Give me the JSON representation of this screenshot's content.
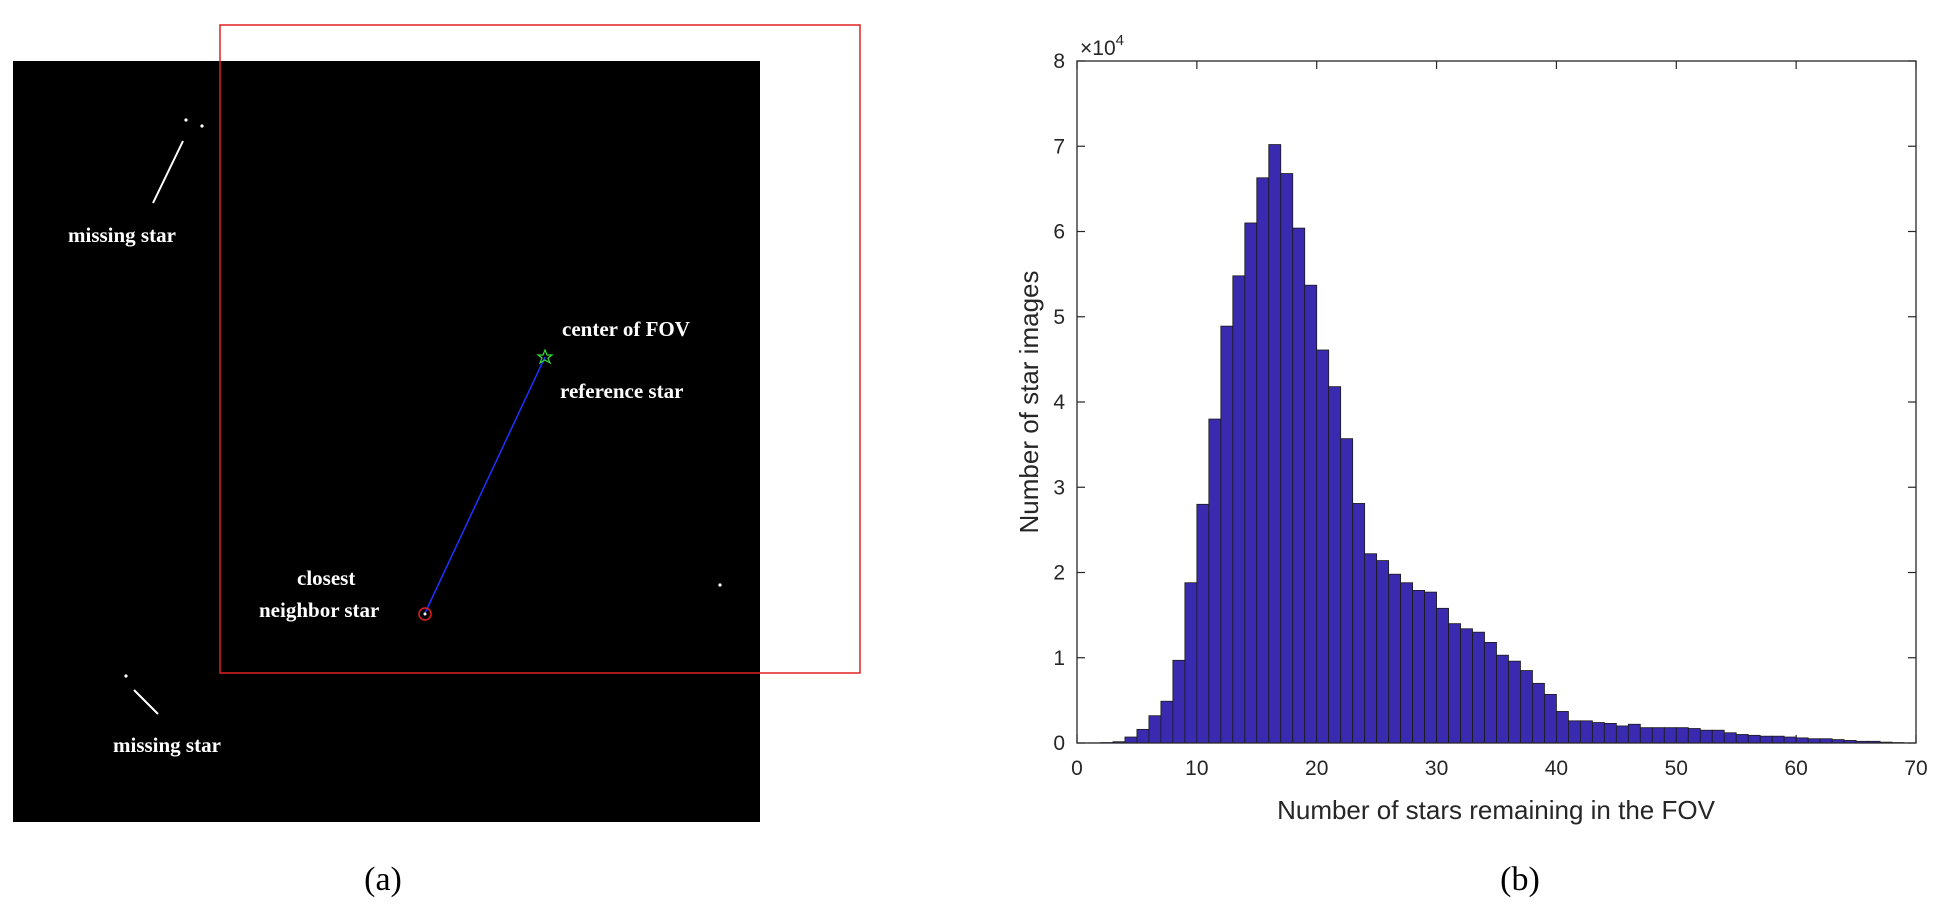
{
  "panel_a": {
    "caption": "(a)",
    "labels": {
      "missing_star_top": "missing star",
      "missing_star_bottom": "missing star",
      "center_of_fov": "center of FOV",
      "reference_star": "reference star",
      "closest_line1": "closest",
      "closest_line2": "neighbor star"
    },
    "colors": {
      "background": "#000000",
      "fov_box": "#e02020",
      "link_line": "#2030ff",
      "center_marker": "#33dd33",
      "neighbor_marker": "#e02020"
    }
  },
  "panel_b": {
    "caption": "(b)"
  },
  "chart_data": {
    "type": "bar",
    "xlabel": "Number of stars remaining in the FOV",
    "ylabel": "Number of star images",
    "y_exponent_base": "×10",
    "y_exponent_power": "4",
    "xlim": [
      0,
      70
    ],
    "ylim": [
      0,
      8
    ],
    "xticks": [
      0,
      10,
      20,
      30,
      40,
      50,
      60,
      70
    ],
    "yticks": [
      0,
      1,
      2,
      3,
      4,
      5,
      6,
      7,
      8
    ],
    "bar_color": "#3a2ab0",
    "bin_width": 1,
    "bin_starts": [
      1,
      2,
      3,
      4,
      5,
      6,
      7,
      8,
      9,
      10,
      11,
      12,
      13,
      14,
      15,
      16,
      17,
      18,
      19,
      20,
      21,
      22,
      23,
      24,
      25,
      26,
      27,
      28,
      29,
      30,
      31,
      32,
      33,
      34,
      35,
      36,
      37,
      38,
      39,
      40,
      41,
      42,
      43,
      44,
      45,
      46,
      47,
      48,
      49,
      50,
      51,
      52,
      53,
      54,
      55,
      56,
      57,
      58,
      59,
      60,
      61,
      62,
      63,
      64,
      65,
      66,
      67,
      68
    ],
    "values": [
      0.02,
      0.05,
      0.15,
      0.7,
      1.6,
      3.2,
      4.9,
      9.7,
      18.8,
      28.0,
      38.0,
      48.9,
      54.8,
      61.0,
      66.3,
      70.2,
      66.8,
      60.4,
      53.7,
      46.1,
      41.8,
      35.7,
      28.1,
      22.2,
      21.4,
      19.8,
      18.8,
      17.9,
      17.7,
      15.8,
      14.0,
      13.4,
      13.0,
      11.8,
      10.3,
      9.6,
      8.5,
      7.0,
      5.7,
      3.7,
      2.6,
      2.6,
      2.4,
      2.3,
      2.0,
      2.2,
      1.8,
      1.8,
      1.8,
      1.8,
      1.7,
      1.5,
      1.5,
      1.2,
      1.0,
      0.9,
      0.8,
      0.8,
      0.7,
      0.6,
      0.5,
      0.5,
      0.4,
      0.3,
      0.2,
      0.2,
      0.1,
      0.05
    ]
  }
}
